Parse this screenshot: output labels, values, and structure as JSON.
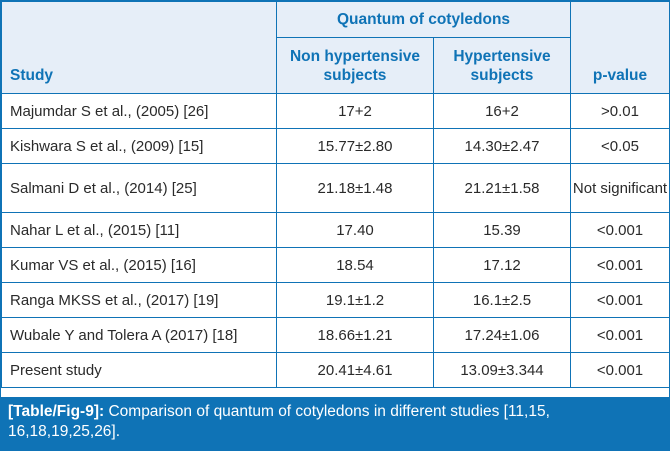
{
  "table": {
    "group_header": "Quantum of cotyledons",
    "columns": {
      "study": "Study",
      "non_hypertensive": "Non hypertensive subjects",
      "hypertensive": "Hypertensive subjects",
      "p_value": "p-value"
    },
    "rows": [
      {
        "study": "Majumdar S et al., (2005) [26]",
        "non_hypertensive": "17+2",
        "hypertensive": "16+2",
        "p_value": ">0.01"
      },
      {
        "study": "Kishwara S et al., (2009) [15]",
        "non_hypertensive": "15.77±2.80",
        "hypertensive": "14.30±2.47",
        "p_value": "<0.05"
      },
      {
        "study": "Salmani D et al., (2014) [25]",
        "non_hypertensive": "21.18±1.48",
        "hypertensive": "21.21±1.58",
        "p_value": "Not significant"
      },
      {
        "study": "Nahar L et al., (2015) [11]",
        "non_hypertensive": "17.40",
        "hypertensive": "15.39",
        "p_value": "<0.001"
      },
      {
        "study": "Kumar VS et al., (2015) [16]",
        "non_hypertensive": "18.54",
        "hypertensive": "17.12",
        "p_value": "<0.001"
      },
      {
        "study": "Ranga MKSS et al., (2017) [19]",
        "non_hypertensive": "19.1±1.2",
        "hypertensive": "16.1±2.5",
        "p_value": "<0.001"
      },
      {
        "study": "Wubale Y and Tolera A (2017) [18]",
        "non_hypertensive": "18.66±1.21",
        "hypertensive": "17.24±1.06",
        "p_value": "<0.001"
      },
      {
        "study": "Present study",
        "non_hypertensive": "20.41±4.61",
        "hypertensive": "13.09±3.344",
        "p_value": "<0.001"
      }
    ]
  },
  "caption": {
    "tag": "[Table/Fig-9]:",
    "text": " Comparison of quantum of cotyledons in different studies [11,15, 16,18,19,25,26]."
  },
  "colors": {
    "border": "#0f73b6",
    "header_text": "#0f73b6",
    "header_bg": "#e6eef8",
    "caption_bg": "#0f73b6",
    "caption_text": "#ffffff"
  }
}
